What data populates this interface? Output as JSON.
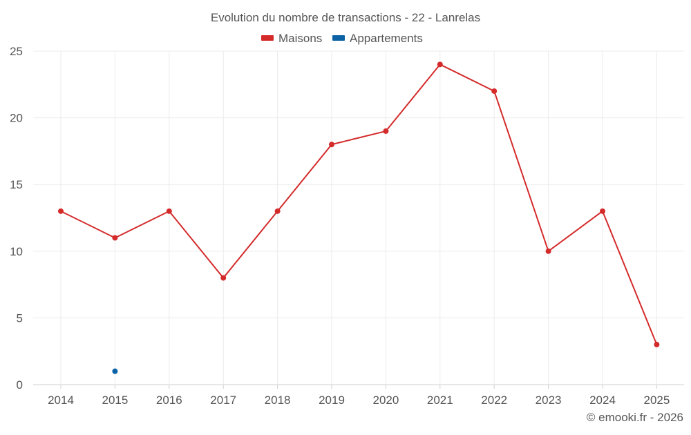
{
  "chart_data": {
    "type": "line",
    "title": "Evolution du nombre de transactions - 22 - Lanrelas",
    "categories": [
      "2014",
      "2015",
      "2016",
      "2017",
      "2018",
      "2019",
      "2020",
      "2021",
      "2022",
      "2023",
      "2024",
      "2025"
    ],
    "series": [
      {
        "name": "Maisons",
        "color": "#d42a2a",
        "values": [
          13,
          11,
          13,
          8,
          13,
          18,
          19,
          24,
          22,
          10,
          13,
          3
        ]
      },
      {
        "name": "Appartements",
        "color": "#0b62a4",
        "values": [
          null,
          1,
          null,
          null,
          null,
          null,
          null,
          null,
          null,
          null,
          null,
          null
        ]
      }
    ],
    "ylim": [
      0,
      25
    ],
    "yticks": [
      0,
      5,
      10,
      15,
      20,
      25
    ],
    "xlabel": "",
    "ylabel": "",
    "grid": true,
    "legend": "top-center"
  },
  "footer": {
    "credit": "© emooki.fr - 2026"
  },
  "colors": {
    "grid": "#ebebeb",
    "axis": "#cfcfcf",
    "text": "#555555"
  }
}
